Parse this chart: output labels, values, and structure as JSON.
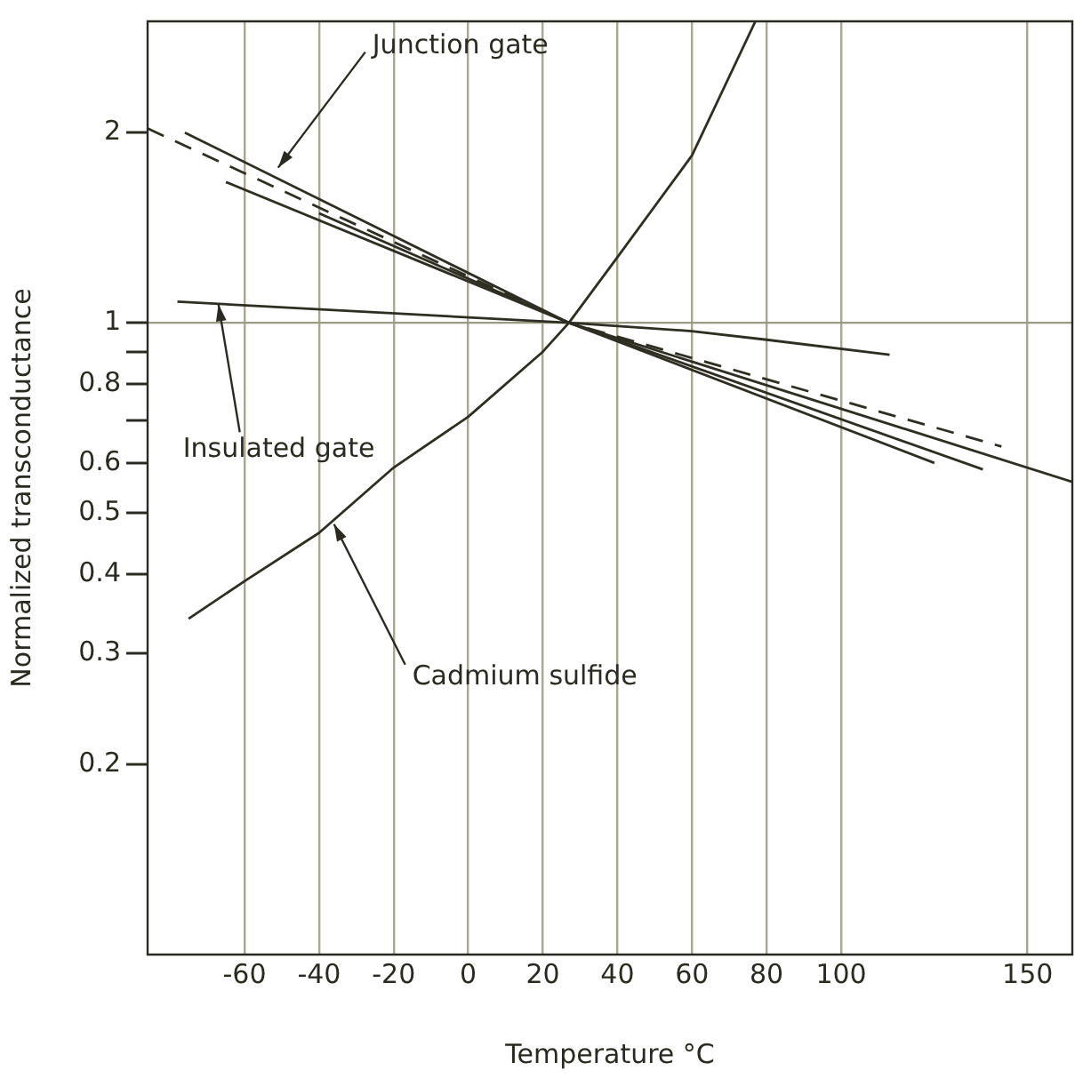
{
  "chart_data": {
    "type": "line",
    "xlabel": "Temperature °C",
    "ylabel": "Normalized transconductance",
    "xlim": [
      -86,
      162
    ],
    "xticks": [
      -60,
      -40,
      -20,
      0,
      20,
      40,
      60,
      80,
      100,
      150
    ],
    "ylim": [
      0.1,
      3
    ],
    "yticks": [
      0.2,
      0.3,
      0.4,
      0.5,
      0.6,
      {
        "value": 0.7,
        "label": null
      },
      0.8,
      {
        "value": 0.9,
        "label": null
      },
      1,
      2
    ],
    "log": "y",
    "grid": "x",
    "legend": false,
    "marker": "none",
    "ref_lines": [
      {
        "axis": "y",
        "value": 1,
        "color": "#9a9a82"
      }
    ],
    "series": [
      {
        "color": "#2e2e22",
        "x": [
          -76,
          27,
          125
        ],
        "values": [
          2.0,
          1.0,
          0.6
        ]
      },
      {
        "color": "#2e2e22",
        "x": [
          -65,
          27,
          138
        ],
        "values": [
          1.67,
          1.0,
          0.586
        ]
      },
      {
        "color": "#2e2e22",
        "x": [
          -40,
          27,
          162
        ],
        "values": [
          1.49,
          1.0,
          0.56
        ]
      },
      {
        "color": "#2e2e22",
        "line_style": "dashed",
        "x": [
          -86,
          27,
          143
        ],
        "values": [
          2.03,
          1.0,
          0.637
        ]
      },
      {
        "color": "#2e2e22",
        "x": [
          -78,
          27,
          60,
          80,
          113
        ],
        "values": [
          1.08,
          1.0,
          0.97,
          0.94,
          0.89
        ]
      },
      {
        "color": "#2e2e22",
        "x": [
          -75,
          -60,
          -40,
          -20,
          0,
          20,
          27,
          40,
          60,
          77
        ],
        "values": [
          0.34,
          0.39,
          0.465,
          0.59,
          0.71,
          0.9,
          1.0,
          1.27,
          1.84,
          3.0
        ]
      }
    ],
    "annotations": [
      {
        "text": "Junction gate",
        "x": -51,
        "y": 1.76
      },
      {
        "text": "Insulated gate",
        "x": -67,
        "y": 1.07
      },
      {
        "text": "Cadmium sulfide",
        "x": -36,
        "y": 0.48
      }
    ]
  }
}
